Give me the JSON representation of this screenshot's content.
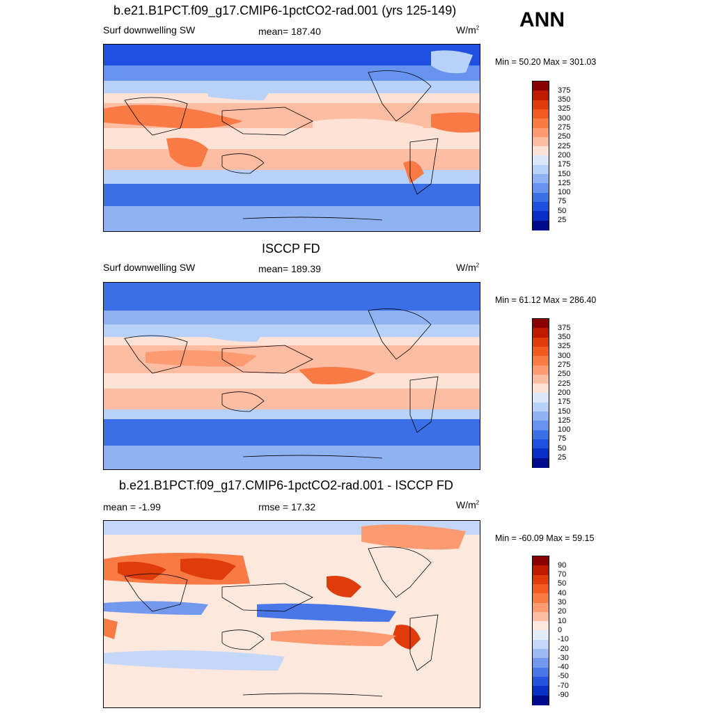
{
  "season_label": "ANN",
  "panels": [
    {
      "title": "b.e21.B1PCT.f09_g17.CMIP6-1pctCO2-rad.001 (yrs 125-149)",
      "left_label": "Surf downwelling SW",
      "center_label": "mean= 187.40",
      "units": "W/m",
      "units_sup": "2",
      "minmax": "Min =  50.20 Max = 301.03"
    },
    {
      "title": "ISCCP FD",
      "left_label": "Surf downwelling SW",
      "center_label": "mean= 189.39",
      "units": "W/m",
      "units_sup": "2",
      "minmax": "Min =  61.12 Max = 286.40"
    },
    {
      "title": "b.e21.B1PCT.f09_g17.CMIP6-1pctCO2-rad.001 - ISCCP FD",
      "left_label": "mean =  -1.99",
      "center_label": "rmse =  17.32",
      "units": "W/m",
      "units_sup": "2",
      "minmax": "Min = -60.09 Max =  59.15"
    }
  ],
  "chart_data": [
    {
      "type": "heatmap",
      "title": "b.e21.B1PCT.f09_g17.CMIP6-1pctCO2-rad.001 (yrs 125-149)",
      "field": "Surf downwelling SW",
      "units": "W/m2",
      "mean": 187.4,
      "min": 50.2,
      "max": 301.03,
      "colorbar_levels": [
        "375",
        "350",
        "325",
        "300",
        "275",
        "250",
        "225",
        "200",
        "175",
        "150",
        "125",
        "100",
        "75",
        "50",
        "25"
      ],
      "colors": [
        "#8b0000",
        "#bf1a00",
        "#e03c0b",
        "#f25a1e",
        "#fa7a45",
        "#fc9a72",
        "#fdbda3",
        "#fde2d5",
        "#dbe8fb",
        "#b8d1f8",
        "#8fb2f3",
        "#6593ee",
        "#3a6fe8",
        "#1f4fe0",
        "#0a2fc8",
        "#000a8c"
      ]
    },
    {
      "type": "heatmap",
      "title": "ISCCP FD",
      "field": "Surf downwelling SW",
      "units": "W/m2",
      "mean": 189.39,
      "min": 61.12,
      "max": 286.4,
      "colorbar_levels": [
        "375",
        "350",
        "325",
        "300",
        "275",
        "250",
        "225",
        "200",
        "175",
        "150",
        "125",
        "100",
        "75",
        "50",
        "25"
      ],
      "colors": [
        "#8b0000",
        "#bf1a00",
        "#e03c0b",
        "#f25a1e",
        "#fa7a45",
        "#fc9a72",
        "#fdbda3",
        "#fde2d5",
        "#dbe8fb",
        "#b8d1f8",
        "#8fb2f3",
        "#6593ee",
        "#3a6fe8",
        "#1f4fe0",
        "#0a2fc8",
        "#000a8c"
      ]
    },
    {
      "type": "heatmap",
      "title": "b.e21.B1PCT.f09_g17.CMIP6-1pctCO2-rad.001 - ISCCP FD",
      "units": "W/m2",
      "mean": -1.99,
      "rmse": 17.32,
      "min": -60.09,
      "max": 59.15,
      "colorbar_levels": [
        "90",
        "70",
        "50",
        "40",
        "30",
        "20",
        "10",
        "0",
        "-10",
        "-20",
        "-30",
        "-40",
        "-50",
        "-70",
        "-90"
      ],
      "colors": [
        "#8b0000",
        "#bf1a00",
        "#e03c0b",
        "#f25a1e",
        "#fa7a45",
        "#fc9a72",
        "#fdbda3",
        "#fde8de",
        "#e4ecfb",
        "#c4d7f8",
        "#9dbaf3",
        "#7399ee",
        "#4a77e8",
        "#2553e0",
        "#0a30c8",
        "#000a8c"
      ]
    }
  ]
}
